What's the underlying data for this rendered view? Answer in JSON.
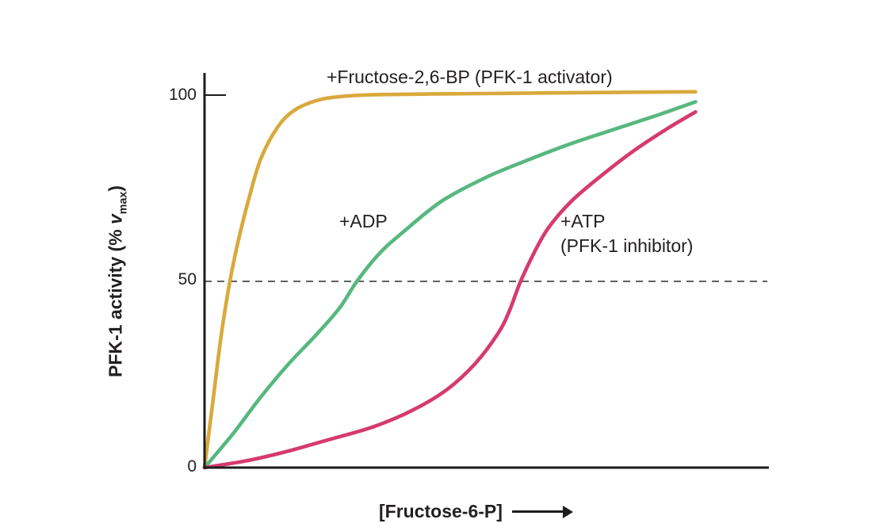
{
  "figure": {
    "background": "#ffffff",
    "text_color": "#231f20"
  },
  "chart_data": {
    "type": "line",
    "title": "",
    "xlabel": "[Fructose-6-P]",
    "ylabel": "PFK-1 activity (% vmax)",
    "ylabel_parts": {
      "prefix": "PFK-1 activity (% ",
      "variable": "v",
      "subscript": "max",
      "suffix": ")"
    },
    "ylim": [
      0,
      105
    ],
    "yticks": [
      "0",
      "50",
      "100"
    ],
    "grid": "off",
    "legend": "inline-annotations",
    "axis_color": "#1c1c1c",
    "reference_line": {
      "y": 50,
      "style": "dashed",
      "color": "#4a4a4a"
    },
    "series": [
      {
        "name": "+Fructose-2,6-BP (PFK-1 activator)",
        "color": "#d9a93c",
        "shape": "hyperbolic (steep rise, plateau at ~100%)",
        "half_max_x": 4.5,
        "points": [
          [
            0,
            0
          ],
          [
            1.5,
            18
          ],
          [
            3,
            36
          ],
          [
            4.5,
            50
          ],
          [
            6,
            61
          ],
          [
            8,
            73
          ],
          [
            10,
            83
          ],
          [
            13,
            91.5
          ],
          [
            16,
            96
          ],
          [
            20,
            98.6
          ],
          [
            24,
            99.6
          ],
          [
            30,
            100.1
          ],
          [
            40,
            100.3
          ],
          [
            55,
            100.5
          ],
          [
            70,
            100.7
          ],
          [
            87,
            100.9
          ]
        ]
      },
      {
        "name": "+ADP",
        "color": "#57b87f",
        "shape": "sigmoidal (intermediate)",
        "half_max_x": 27,
        "points": [
          [
            0,
            0
          ],
          [
            5,
            9
          ],
          [
            10,
            19
          ],
          [
            15,
            28
          ],
          [
            20,
            36
          ],
          [
            24,
            43
          ],
          [
            27,
            50
          ],
          [
            31,
            57.5
          ],
          [
            35,
            63
          ],
          [
            42,
            71.5
          ],
          [
            50,
            78
          ],
          [
            58,
            83
          ],
          [
            65,
            87
          ],
          [
            72,
            90.5
          ],
          [
            80,
            94.5
          ],
          [
            87,
            98.2
          ]
        ]
      },
      {
        "name": "+ATP (PFK-1 inhibitor)",
        "color": "#d63a6e",
        "shape": "sigmoidal (right-shifted)",
        "half_max_x": 56,
        "points": [
          [
            0,
            0
          ],
          [
            8,
            2
          ],
          [
            15,
            4.5
          ],
          [
            22,
            7.5
          ],
          [
            30,
            11
          ],
          [
            37,
            15.5
          ],
          [
            43,
            21
          ],
          [
            48,
            28
          ],
          [
            52,
            36
          ],
          [
            54,
            42
          ],
          [
            56,
            50
          ],
          [
            58.5,
            58
          ],
          [
            61,
            64.5
          ],
          [
            65,
            71.5
          ],
          [
            70,
            78
          ],
          [
            76,
            85
          ],
          [
            82,
            91
          ],
          [
            87,
            95.5
          ]
        ]
      }
    ]
  },
  "annotations": {
    "activator": "+Fructose-2,6-BP (PFK-1 activator)",
    "adp": "+ADP",
    "atp_line1": "+ATP",
    "atp_line2": "(PFK-1 inhibitor)"
  }
}
